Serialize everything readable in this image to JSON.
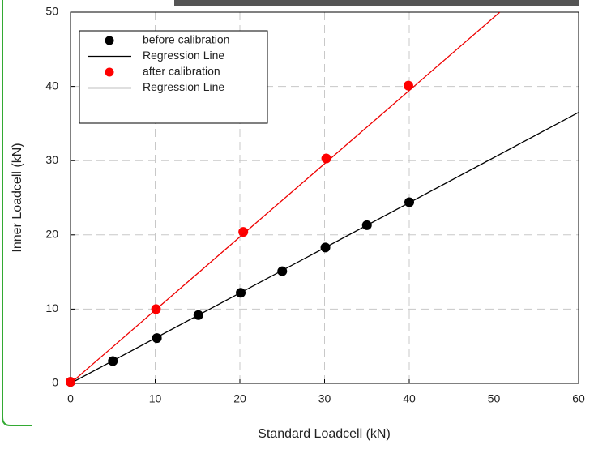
{
  "chart_data": {
    "type": "scatter",
    "xlabel": "Standard Loadcell (kN)",
    "ylabel": "Inner Loadcell (kN)",
    "xlim": [
      0,
      60
    ],
    "ylim": [
      0,
      50
    ],
    "xticks": [
      0,
      10,
      20,
      30,
      40,
      50,
      60
    ],
    "yticks": [
      0,
      10,
      20,
      30,
      40,
      50
    ],
    "grid": true,
    "legend": "upper left",
    "series": [
      {
        "name": "before calibration",
        "color": "#000000",
        "mode": "marker",
        "x": [
          0,
          5,
          10.2,
          15.1,
          20.1,
          25,
          30.1,
          35,
          40
        ],
        "values": [
          0.2,
          3,
          6.1,
          9.2,
          12.2,
          15.1,
          18.3,
          21.3,
          24.4
        ]
      },
      {
        "name": "Regression Line",
        "color": "#000000",
        "mode": "line",
        "x": [
          0,
          60
        ],
        "values": [
          0,
          36.5
        ]
      },
      {
        "name": "after calibration",
        "color": "#ff0000",
        "mode": "marker",
        "x": [
          0,
          10.1,
          20.4,
          30.2,
          39.9
        ],
        "values": [
          0.2,
          10,
          20.4,
          30.3,
          40.1
        ]
      },
      {
        "name": "Regression Line",
        "color": "#000000",
        "mode": "line",
        "x": [
          0,
          50.7
        ],
        "values": [
          0,
          50
        ]
      }
    ]
  }
}
